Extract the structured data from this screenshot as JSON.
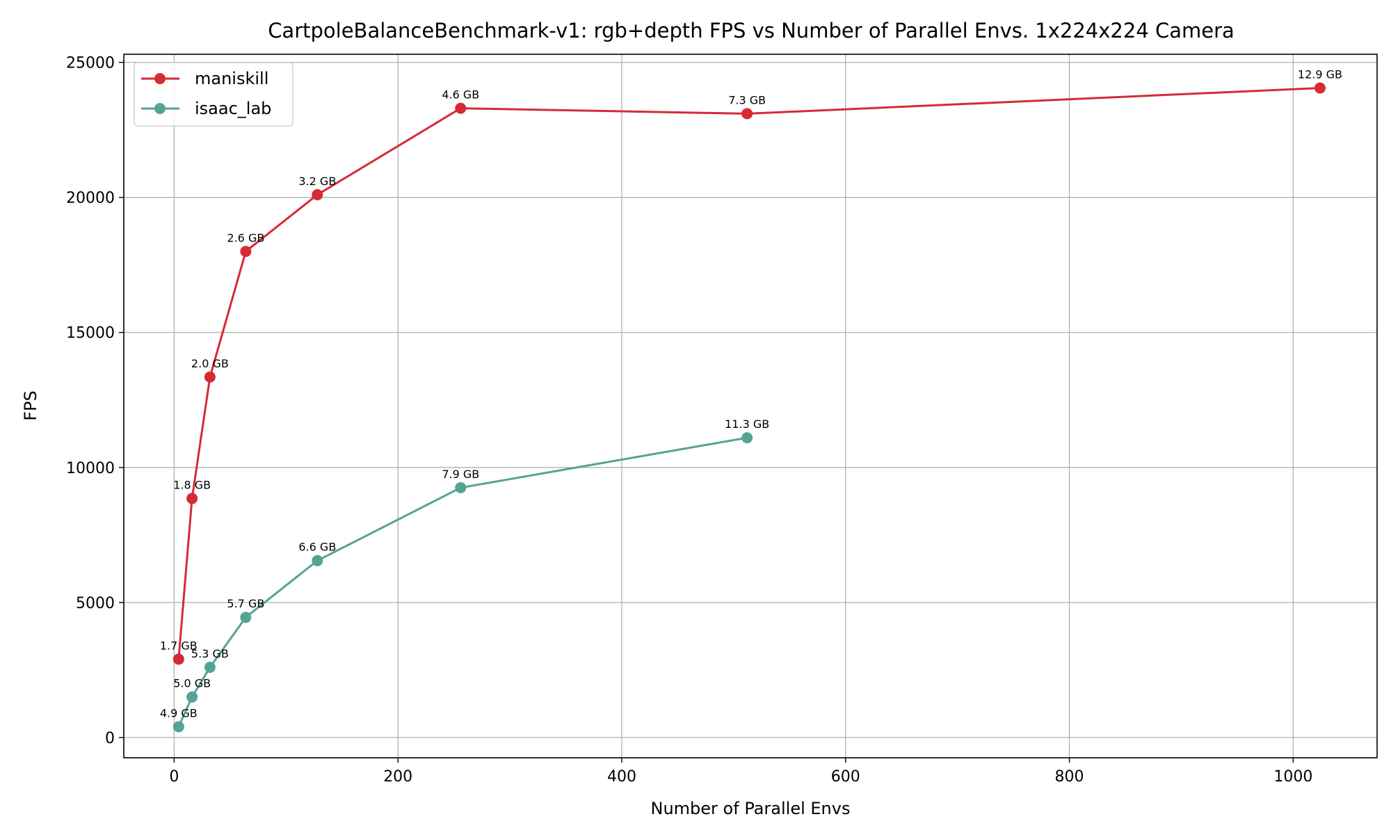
{
  "chart_data": {
    "type": "line",
    "title": "CartpoleBalanceBenchmark-v1: rgb+depth FPS vs Number of Parallel Envs. 1x224x224 Camera",
    "xlabel": "Number of Parallel Envs",
    "ylabel": "FPS",
    "xlim": [
      -45,
      1075
    ],
    "ylim": [
      -750,
      25300
    ],
    "xticks": [
      0,
      200,
      400,
      600,
      800,
      1000
    ],
    "yticks": [
      0,
      5000,
      10000,
      15000,
      20000,
      25000
    ],
    "grid": true,
    "legend_position": "top-left",
    "series": [
      {
        "name": "maniskill",
        "color": "#d62a35",
        "x": [
          4,
          16,
          32,
          64,
          128,
          256,
          512,
          1024
        ],
        "y": [
          2900,
          8850,
          13350,
          18000,
          20100,
          23300,
          23100,
          24050
        ],
        "labels": [
          "1.7 GB",
          "1.8 GB",
          "2.0 GB",
          "2.6 GB",
          "3.2 GB",
          "4.6 GB",
          "7.3 GB",
          "12.9 GB"
        ]
      },
      {
        "name": "isaac_lab",
        "color": "#55a395",
        "x": [
          4,
          16,
          32,
          64,
          128,
          256,
          512
        ],
        "y": [
          400,
          1500,
          2600,
          4450,
          6550,
          9250,
          11100
        ],
        "labels": [
          "4.9 GB",
          "5.0 GB",
          "5.3 GB",
          "5.7 GB",
          "6.6 GB",
          "7.9 GB",
          "11.3 GB"
        ]
      }
    ]
  }
}
